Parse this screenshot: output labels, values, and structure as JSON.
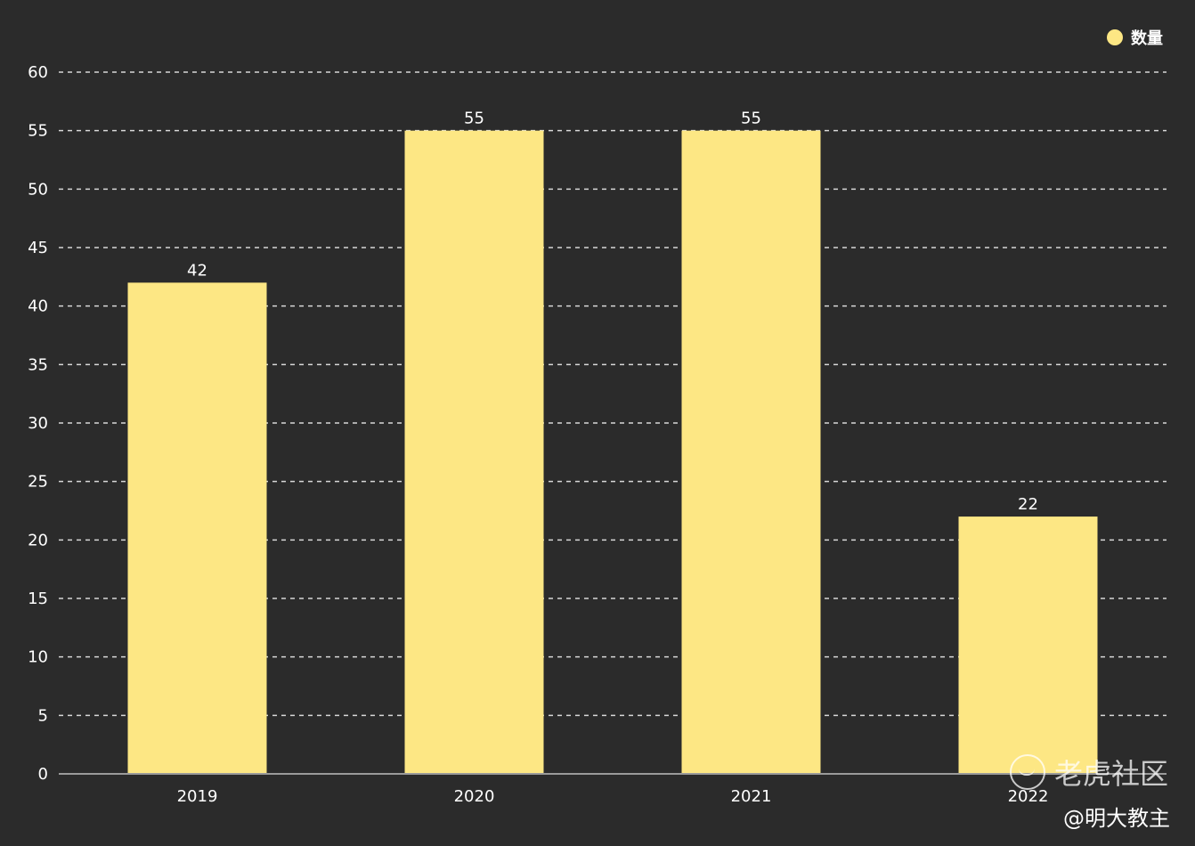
{
  "chart_data": {
    "type": "bar",
    "categories": [
      "2019",
      "2020",
      "2021",
      "2022"
    ],
    "series": [
      {
        "name": "数量",
        "values": [
          42,
          55,
          55,
          22
        ],
        "color": "#fde784"
      }
    ],
    "ylim": [
      0,
      60
    ],
    "yticks": [
      0,
      5,
      10,
      15,
      20,
      25,
      30,
      35,
      40,
      45,
      50,
      55,
      60
    ],
    "grid": true,
    "legend_position": "top-right",
    "data_labels": [
      "42",
      "55",
      "55",
      "22"
    ]
  },
  "colors": {
    "background": "#2b2b2b",
    "bar": "#fde784",
    "grid": "#d8d8d8",
    "axis": "#9a9a9a",
    "text": "#ffffff"
  },
  "legend": {
    "label": "数量",
    "marker_color": "#fde784"
  },
  "watermark": {
    "text": "老虎社区",
    "icon": "tiger-logo-icon"
  },
  "credit": {
    "text": "@明大教主"
  }
}
